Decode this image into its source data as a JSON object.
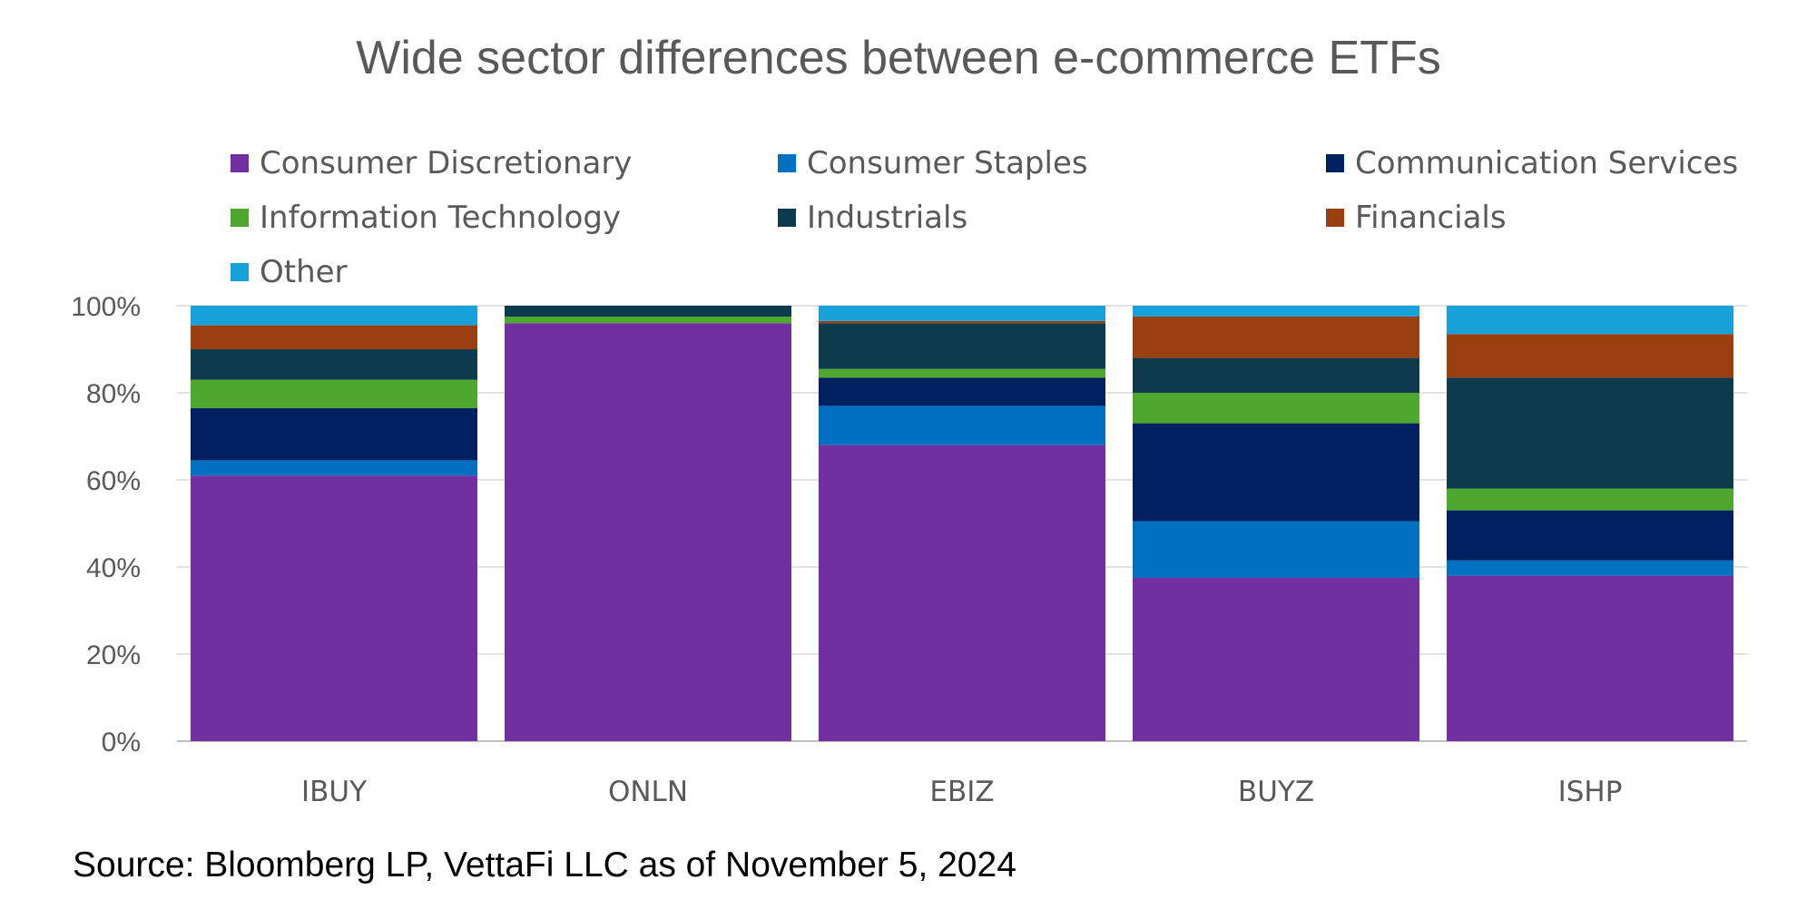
{
  "chart_data": {
    "type": "bar",
    "stacked": true,
    "title": "Wide sector differences between e-commerce ETFs",
    "categories": [
      "IBUY",
      "ONLN",
      "EBIZ",
      "BUYZ",
      "ISHP"
    ],
    "xlabel": "",
    "ylabel": "",
    "ylim": [
      0,
      100
    ],
    "y_ticks": [
      0,
      20,
      40,
      60,
      80,
      100
    ],
    "y_tick_labels": [
      "0%",
      "20%",
      "40%",
      "60%",
      "80%",
      "100%"
    ],
    "grid": true,
    "legend_position": "top",
    "series": [
      {
        "name": "Consumer Discretionary",
        "color": "#7030A0",
        "values": [
          61,
          96,
          68,
          37.5,
          38
        ]
      },
      {
        "name": "Consumer Staples",
        "color": "#0070C0",
        "values": [
          3.5,
          0,
          9,
          13,
          3.5
        ]
      },
      {
        "name": "Communication Services",
        "color": "#002060",
        "values": [
          12,
          0,
          6.5,
          22.5,
          11.5
        ]
      },
      {
        "name": "Information Technology",
        "color": "#4EA72E",
        "values": [
          6.5,
          1.5,
          2,
          7,
          5
        ]
      },
      {
        "name": "Industrials",
        "color": "#0E3A4D",
        "values": [
          7,
          2.5,
          10.5,
          8,
          25.5
        ]
      },
      {
        "name": "Financials",
        "color": "#9A3F0F",
        "values": [
          5.5,
          0,
          0.5,
          9.5,
          10
        ]
      },
      {
        "name": "Other",
        "color": "#18A0D8",
        "values": [
          4.5,
          0,
          3.5,
          2.5,
          6.5
        ]
      }
    ]
  },
  "source_note": "Source: Bloomberg LP, VettaFi LLC as of November 5, 2024"
}
